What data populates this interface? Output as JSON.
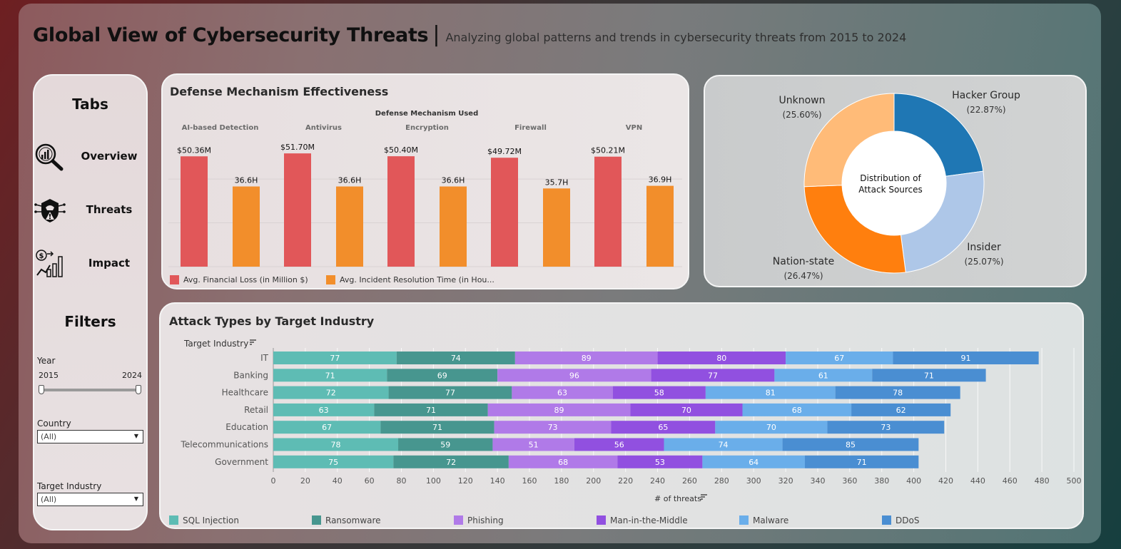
{
  "header": {
    "title": "Global View of Cybersecurity Threats",
    "separator": "|",
    "subtitle": "Analyzing global patterns and trends in cybersecurity threats from 2015 to 2024"
  },
  "sidebar": {
    "tabs_heading": "Tabs",
    "nav": [
      {
        "label": "Overview",
        "icon": "magnifier-chart-icon"
      },
      {
        "label": "Threats",
        "icon": "hacker-shield-icon"
      },
      {
        "label": "Impact",
        "icon": "financial-growth-icon"
      }
    ],
    "filters_heading": "Filters",
    "year": {
      "label": "Year",
      "min": "2015",
      "max": "2024"
    },
    "country": {
      "label": "Country",
      "value": "(All)"
    },
    "industry": {
      "label": "Target Industry",
      "value": "(All)"
    }
  },
  "colors": {
    "financial_loss": "#e15759",
    "resolution_time": "#f28e2b",
    "hacker_group": "#1f77b4",
    "insider": "#aec7e8",
    "nation_state": "#ff7f0e",
    "unknown": "#ffbb78",
    "sql_injection": "#5ebcb4",
    "ransomware": "#47968f",
    "phishing": "#b07ae8",
    "mitm": "#9150e0",
    "malware": "#6aaeea",
    "ddos": "#4a8ed2"
  },
  "chart_data": [
    {
      "type": "bar",
      "title": "Defense Mechanism Effectiveness",
      "group_header": "Defense Mechanism Used",
      "categories": [
        "AI-based Detection",
        "Antivirus",
        "Encryption",
        "Firewall",
        "VPN"
      ],
      "series": [
        {
          "name": "Avg. Financial Loss (in Million $)",
          "values": [
            50.36,
            51.7,
            50.4,
            49.72,
            50.21
          ],
          "labels": [
            "$50.36M",
            "$51.70M",
            "$50.40M",
            "$49.72M",
            "$50.21M"
          ]
        },
        {
          "name": "Avg. Incident Resolution Time (in Hou...",
          "values": [
            36.6,
            36.6,
            36.6,
            35.7,
            36.9
          ],
          "labels": [
            "36.6H",
            "36.6H",
            "36.6H",
            "35.7H",
            "36.9H"
          ]
        }
      ],
      "legend_position": "bottom-left"
    },
    {
      "type": "pie",
      "center_label": "Distribution of Attack Sources",
      "slices": [
        {
          "name": "Hacker Group",
          "value": 22.87,
          "label": "(22.87%)"
        },
        {
          "name": "Insider",
          "value": 25.07,
          "label": "(25.07%)"
        },
        {
          "name": "Nation-state",
          "value": 26.47,
          "label": "(26.47%)"
        },
        {
          "name": "Unknown",
          "value": 25.6,
          "label": "(25.60%)"
        }
      ]
    },
    {
      "type": "bar",
      "orientation": "horizontal",
      "stacked": true,
      "title": "Attack Types by Target Industry",
      "ylabel": "Target Industry",
      "xlabel": "# of threats",
      "categories": [
        "IT",
        "Banking",
        "Healthcare",
        "Retail",
        "Education",
        "Telecommunications",
        "Government"
      ],
      "series": [
        {
          "name": "SQL Injection",
          "values": [
            77,
            71,
            72,
            63,
            67,
            78,
            75
          ]
        },
        {
          "name": "Ransomware",
          "values": [
            74,
            69,
            77,
            71,
            71,
            59,
            72
          ]
        },
        {
          "name": "Phishing",
          "values": [
            89,
            96,
            63,
            89,
            73,
            51,
            68
          ]
        },
        {
          "name": "Man-in-the-Middle",
          "values": [
            80,
            77,
            58,
            70,
            65,
            56,
            53
          ]
        },
        {
          "name": "Malware",
          "values": [
            67,
            61,
            81,
            68,
            70,
            74,
            64
          ]
        },
        {
          "name": "DDoS",
          "values": [
            91,
            71,
            78,
            62,
            73,
            85,
            71
          ]
        }
      ],
      "xlim": [
        0,
        500
      ],
      "xticks": [
        0,
        20,
        40,
        60,
        80,
        100,
        120,
        140,
        160,
        180,
        200,
        220,
        240,
        260,
        280,
        300,
        320,
        340,
        360,
        380,
        400,
        420,
        440,
        460,
        480,
        500
      ],
      "grid": true,
      "legend_position": "bottom"
    }
  ]
}
